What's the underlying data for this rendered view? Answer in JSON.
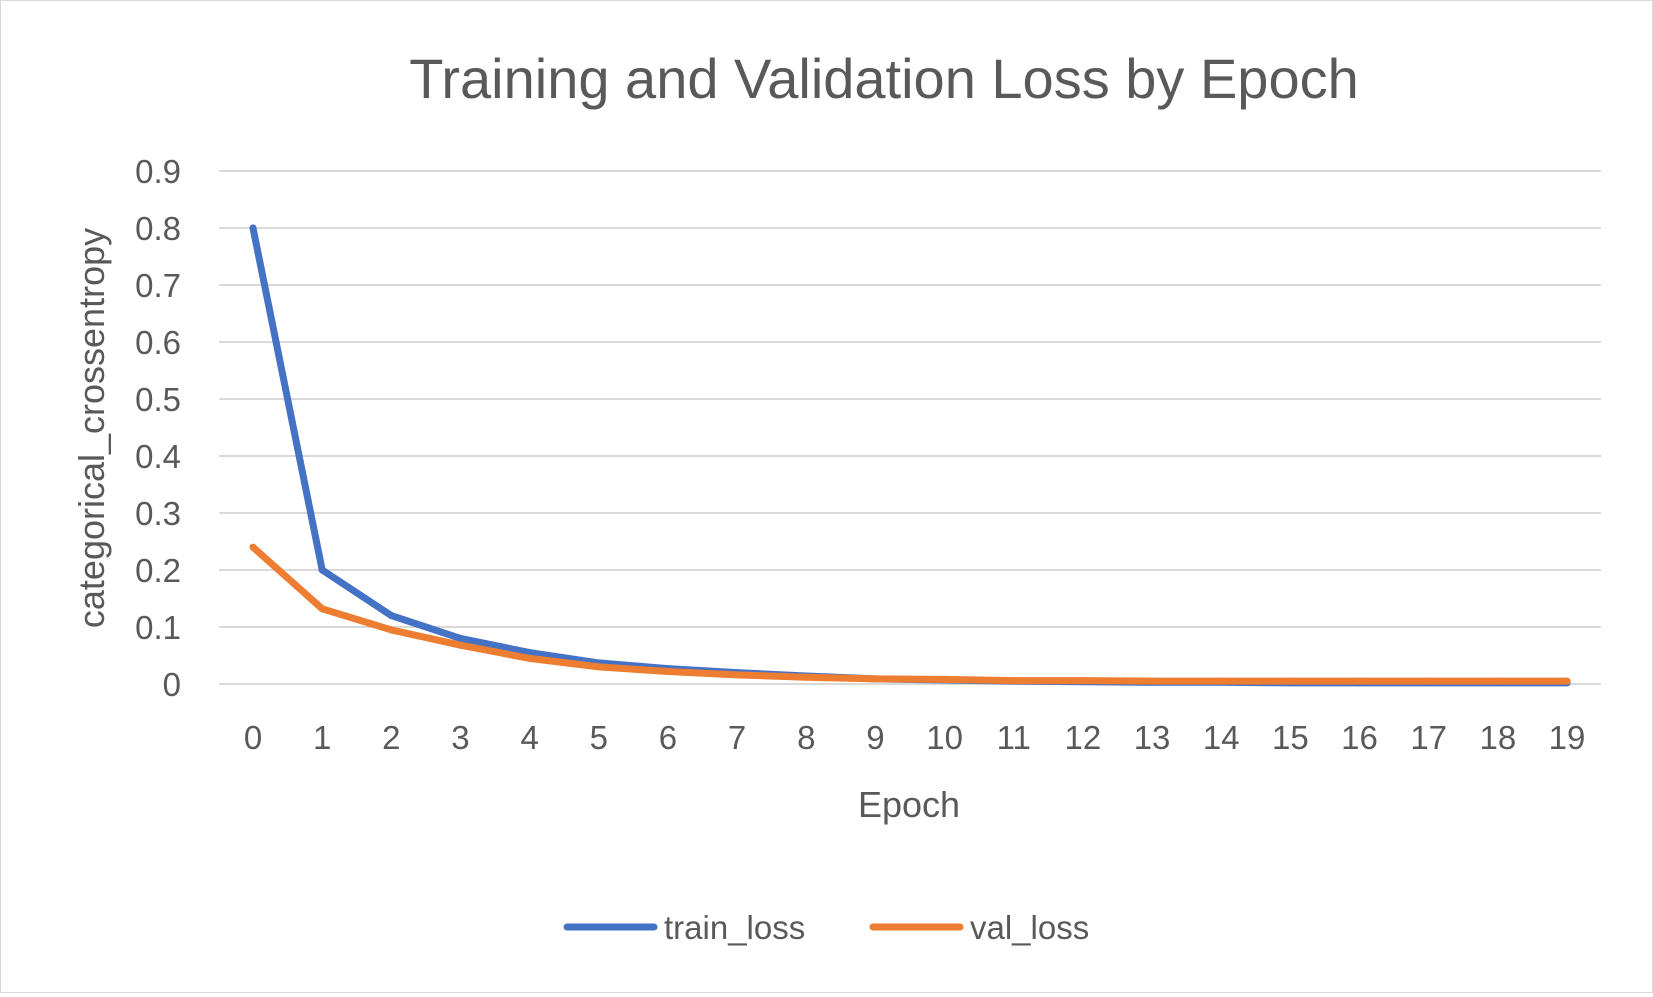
{
  "chart_data": {
    "type": "line",
    "title": "Training and Validation Loss by Epoch",
    "xlabel": "Epoch",
    "ylabel": "categorical_crossentropy",
    "categories": [
      "0",
      "1",
      "2",
      "3",
      "4",
      "5",
      "6",
      "7",
      "8",
      "9",
      "10",
      "11",
      "12",
      "13",
      "14",
      "15",
      "16",
      "17",
      "18",
      "19"
    ],
    "ylim": [
      0,
      0.9
    ],
    "yticks": [
      "0",
      "0.1",
      "0.2",
      "0.3",
      "0.4",
      "0.5",
      "0.6",
      "0.7",
      "0.8",
      "0.9"
    ],
    "grid": true,
    "legend_position": "bottom",
    "series": [
      {
        "name": "train_loss",
        "color": "#4472C4",
        "values": [
          0.8,
          0.2,
          0.12,
          0.08,
          0.055,
          0.037,
          0.027,
          0.02,
          0.014,
          0.009,
          0.007,
          0.005,
          0.004,
          0.003,
          0.003,
          0.002,
          0.002,
          0.002,
          0.002,
          0.002
        ]
      },
      {
        "name": "val_loss",
        "color": "#ED7D31",
        "values": [
          0.24,
          0.132,
          0.095,
          0.068,
          0.045,
          0.03,
          0.022,
          0.016,
          0.012,
          0.009,
          0.008,
          0.006,
          0.006,
          0.005,
          0.005,
          0.005,
          0.005,
          0.005,
          0.005,
          0.005
        ]
      }
    ]
  }
}
